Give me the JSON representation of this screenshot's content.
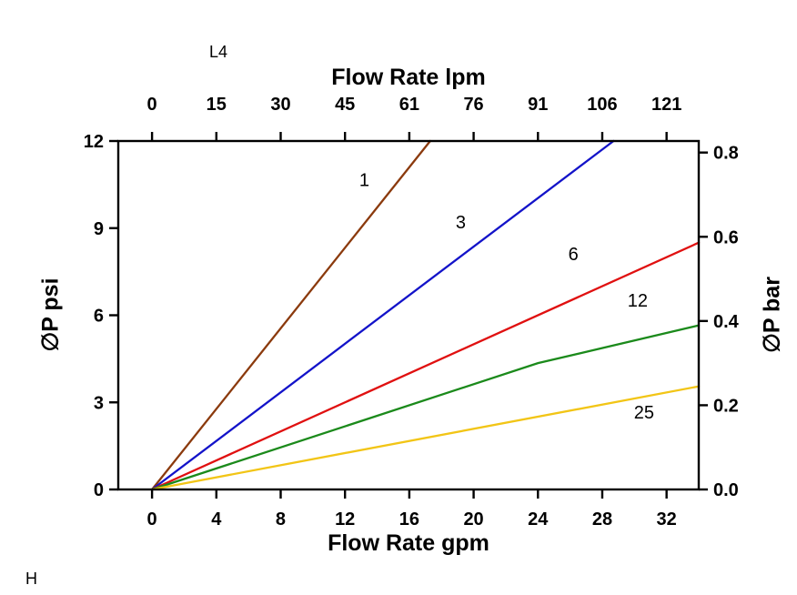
{
  "figure_labels": {
    "top_left": "L4",
    "bottom_left": "H"
  },
  "chart_data": {
    "type": "line",
    "title": "",
    "grid": false,
    "legend": "inline-labels",
    "axes": {
      "bottom": {
        "label": "Flow Rate gpm",
        "ticks": [
          0,
          4,
          8,
          12,
          16,
          20,
          24,
          28,
          32
        ],
        "range": [
          -2.1,
          34.0
        ]
      },
      "top": {
        "label": "Flow Rate lpm",
        "ticks": [
          "0",
          "15",
          "30",
          "45",
          "61",
          "76",
          "91",
          "106",
          "121"
        ],
        "positions_gpm": [
          0,
          4,
          8,
          12,
          16,
          20,
          24,
          28,
          32
        ]
      },
      "left": {
        "label": "∅P psi",
        "ticks": [
          0,
          3,
          6,
          9,
          12
        ],
        "range": [
          0,
          12
        ]
      },
      "right": {
        "label": "∅P bar",
        "ticks": [
          "0.0",
          "0.2",
          "0.4",
          "0.6",
          "0.8"
        ],
        "bar_per_psi": 0.068948
      }
    },
    "series": [
      {
        "name": "1",
        "color": "#8B3A0D",
        "x_gpm": [
          0,
          17.3
        ],
        "y_psi": [
          0,
          12
        ],
        "label_at": {
          "gpm": 13.2,
          "psi": 10.45
        }
      },
      {
        "name": "3",
        "color": "#1313C9",
        "x_gpm": [
          0,
          28.7
        ],
        "y_psi": [
          0,
          12
        ],
        "label_at": {
          "gpm": 19.2,
          "psi": 9.0
        }
      },
      {
        "name": "6",
        "color": "#E01010",
        "x_gpm": [
          0,
          34
        ],
        "y_psi": [
          0,
          8.5
        ],
        "label_at": {
          "gpm": 26.2,
          "psi": 7.9
        }
      },
      {
        "name": "12",
        "color": "#1B8A1B",
        "x_gpm": [
          0,
          24,
          34
        ],
        "y_psi": [
          0,
          4.35,
          5.65
        ],
        "label_at": {
          "gpm": 30.2,
          "psi": 6.3
        }
      },
      {
        "name": "25",
        "color": "#F2C516",
        "x_gpm": [
          0,
          34
        ],
        "y_psi": [
          0,
          3.55
        ],
        "label_at": {
          "gpm": 30.6,
          "psi": 2.45
        }
      }
    ],
    "style": {
      "axis_color": "#000000",
      "text_color": "#000000",
      "line_width": 2.3,
      "frame_width": 2.4,
      "tick_length": 10
    }
  }
}
